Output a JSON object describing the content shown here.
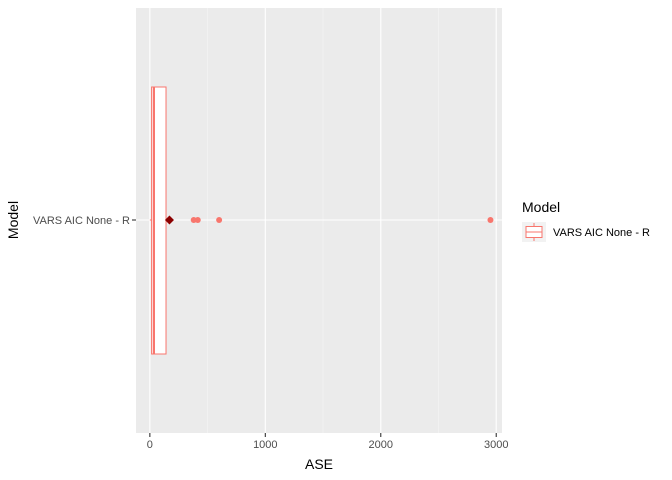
{
  "chart_data": {
    "type": "boxplot",
    "orientation": "horizontal",
    "title": "",
    "xlabel": "ASE",
    "ylabel": "Model",
    "xlim": [
      -120,
      3050
    ],
    "x_ticks": [
      0,
      1000,
      2000,
      3000
    ],
    "x_tick_labels": [
      "0",
      "1000",
      "2000",
      "3000"
    ],
    "categories": [
      "VARS AIC None - R"
    ],
    "series": [
      {
        "name": "VARS AIC None - R",
        "color": "#F8766D",
        "box": {
          "min": 0,
          "q1": 15,
          "median": 35,
          "q3": 140,
          "max": 185
        },
        "outliers": [
          380,
          415,
          600,
          2950
        ],
        "mean": 170,
        "mean_color": "#8B0000"
      }
    ],
    "grid": true,
    "legend": {
      "title": "Model",
      "position": "right",
      "entries": [
        "VARS AIC None - R"
      ]
    }
  }
}
